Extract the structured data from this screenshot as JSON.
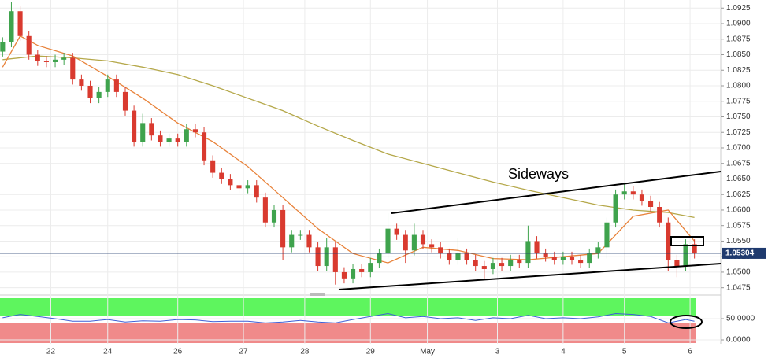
{
  "chart_data": [
    {
      "type": "candlestick",
      "annotation": "Sideways",
      "last_price": 1.05304,
      "up_color": "#3fa34d",
      "down_color": "#d93a2f",
      "grid": true,
      "xlim": [
        -0.3,
        82
      ],
      "ylim": [
        1.0467,
        1.0938
      ],
      "xticks": [
        {
          "value": 5.5,
          "label": "22"
        },
        {
          "value": 12,
          "label": "24"
        },
        {
          "value": 20,
          "label": "26"
        },
        {
          "value": 27.5,
          "label": "27"
        },
        {
          "value": 34.5,
          "label": "28"
        },
        {
          "value": 42,
          "label": "29"
        },
        {
          "value": 48.5,
          "label": "May"
        },
        {
          "value": 56.5,
          "label": "3"
        },
        {
          "value": 64,
          "label": "4"
        },
        {
          "value": 71,
          "label": "5"
        },
        {
          "value": 78.5,
          "label": "6"
        }
      ],
      "yticks": [
        1.0475,
        {
          "value": 1.05,
          "label": "1.0500"
        },
        1.0525,
        {
          "value": 1.055,
          "label": "1.0550"
        },
        1.0575,
        {
          "value": 1.06,
          "label": "1.0600"
        },
        1.0625,
        {
          "value": 1.065,
          "label": "1.0650"
        },
        1.0675,
        {
          "value": 1.07,
          "label": "1.0700"
        },
        1.0725,
        {
          "value": 1.075,
          "label": "1.0750"
        },
        1.0775,
        {
          "value": 1.08,
          "label": "1.0800"
        },
        1.0825,
        {
          "value": 1.085,
          "label": "1.0850"
        },
        1.0875,
        {
          "value": 1.09,
          "label": "1.0900"
        },
        1.0925
      ],
      "x": [
        0,
        1,
        2,
        3,
        4,
        5,
        6,
        7,
        8,
        9,
        10,
        11,
        12,
        13,
        14,
        15,
        16,
        17,
        18,
        19,
        20,
        21,
        22,
        23,
        24,
        25,
        26,
        27,
        28,
        29,
        30,
        31,
        32,
        33,
        34,
        35,
        36,
        37,
        38,
        39,
        40,
        41,
        42,
        43,
        44,
        45,
        46,
        47,
        48,
        49,
        50,
        51,
        52,
        53,
        54,
        55,
        56,
        57,
        58,
        59,
        60,
        61,
        62,
        63,
        64,
        65,
        66,
        67,
        68,
        69,
        70,
        71,
        72,
        73,
        74,
        75,
        76,
        77,
        78,
        79
      ],
      "open": [
        1.0855,
        1.087,
        1.092,
        1.088,
        1.085,
        1.084,
        1.0838,
        1.0842,
        1.0845,
        1.081,
        1.08,
        1.078,
        1.079,
        1.081,
        1.079,
        1.076,
        1.071,
        1.074,
        1.072,
        1.071,
        1.0715,
        1.071,
        1.073,
        1.0725,
        1.068,
        1.066,
        1.065,
        1.064,
        1.0635,
        1.064,
        1.062,
        1.058,
        1.06,
        1.054,
        1.056,
        1.056,
        1.054,
        1.051,
        1.054,
        1.05,
        1.049,
        1.0505,
        1.05,
        1.0515,
        1.053,
        1.057,
        1.056,
        1.0535,
        1.056,
        1.0545,
        1.054,
        1.053,
        1.052,
        1.053,
        1.052,
        1.051,
        1.0505,
        1.0515,
        1.051,
        1.052,
        1.0515,
        1.055,
        1.053,
        1.0525,
        1.052,
        1.0525,
        1.052,
        1.0515,
        1.053,
        1.054,
        1.058,
        1.0625,
        1.063,
        1.0625,
        1.0615,
        1.0605,
        1.058,
        1.052,
        1.051,
        1.0545
      ],
      "high": [
        1.0878,
        1.0935,
        1.0928,
        1.0888,
        1.0858,
        1.0848,
        1.085,
        1.0853,
        1.0853,
        1.0818,
        1.0808,
        1.0798,
        1.0818,
        1.0818,
        1.0798,
        1.0768,
        1.0755,
        1.0748,
        1.0728,
        1.0723,
        1.0723,
        1.0738,
        1.0738,
        1.0733,
        1.0688,
        1.0668,
        1.0658,
        1.0648,
        1.0648,
        1.0648,
        1.0628,
        1.0608,
        1.0608,
        1.0568,
        1.0568,
        1.0568,
        1.0548,
        1.0555,
        1.0548,
        1.0508,
        1.0513,
        1.0513,
        1.0523,
        1.0538,
        1.0595,
        1.0578,
        1.0568,
        1.0578,
        1.0568,
        1.0553,
        1.0548,
        1.0538,
        1.0555,
        1.0538,
        1.0528,
        1.0518,
        1.0523,
        1.0523,
        1.0528,
        1.0528,
        1.0575,
        1.0558,
        1.0538,
        1.0533,
        1.0533,
        1.0533,
        1.0528,
        1.0538,
        1.0548,
        1.0588,
        1.0633,
        1.0642,
        1.0638,
        1.0633,
        1.0623,
        1.0613,
        1.0588,
        1.0528,
        1.0553,
        1.0553
      ],
      "low": [
        1.0847,
        1.0862,
        1.0872,
        1.0842,
        1.0832,
        1.083,
        1.083,
        1.0834,
        1.0802,
        1.0792,
        1.0772,
        1.0772,
        1.0782,
        1.0782,
        1.0752,
        1.0702,
        1.0702,
        1.0712,
        1.0702,
        1.0702,
        1.0702,
        1.0702,
        1.0717,
        1.0672,
        1.0652,
        1.0642,
        1.0632,
        1.0627,
        1.0627,
        1.0612,
        1.0572,
        1.0572,
        1.052,
        1.0532,
        1.0552,
        1.0532,
        1.0502,
        1.0502,
        1.048,
        1.0482,
        1.0482,
        1.0492,
        1.0492,
        1.0507,
        1.0522,
        1.0552,
        1.0515,
        1.0527,
        1.0537,
        1.0532,
        1.0522,
        1.0512,
        1.0512,
        1.0512,
        1.0502,
        1.049,
        1.0497,
        1.0502,
        1.0502,
        1.0507,
        1.0507,
        1.0522,
        1.0517,
        1.0512,
        1.0512,
        1.0512,
        1.0507,
        1.0507,
        1.0522,
        1.0522,
        1.0572,
        1.0617,
        1.0617,
        1.0607,
        1.0597,
        1.0572,
        1.0502,
        1.0492,
        1.0502,
        1.0522
      ],
      "close": [
        1.087,
        1.092,
        1.088,
        1.085,
        1.084,
        1.0838,
        1.0842,
        1.0845,
        1.081,
        1.08,
        1.078,
        1.079,
        1.081,
        1.079,
        1.076,
        1.071,
        1.074,
        1.072,
        1.071,
        1.0715,
        1.071,
        1.073,
        1.0725,
        1.068,
        1.066,
        1.065,
        1.064,
        1.0635,
        1.064,
        1.062,
        1.058,
        1.06,
        1.054,
        1.056,
        1.056,
        1.054,
        1.051,
        1.054,
        1.05,
        1.049,
        1.0505,
        1.05,
        1.0515,
        1.053,
        1.057,
        1.056,
        1.0535,
        1.056,
        1.0545,
        1.054,
        1.053,
        1.052,
        1.053,
        1.052,
        1.051,
        1.0505,
        1.0515,
        1.051,
        1.052,
        1.0515,
        1.055,
        1.053,
        1.0525,
        1.052,
        1.0525,
        1.052,
        1.0515,
        1.053,
        1.054,
        1.058,
        1.0625,
        1.063,
        1.0625,
        1.0615,
        1.0605,
        1.058,
        1.052,
        1.051,
        1.0545,
        1.053
      ],
      "overlays": [
        {
          "color": "#b5a84a",
          "x": [
            0,
            4,
            8,
            12,
            16,
            20,
            24,
            28,
            32,
            36,
            40,
            44,
            48,
            52,
            56,
            60,
            64,
            68,
            72,
            76,
            79
          ],
          "values": [
            1.0842,
            1.0848,
            1.0845,
            1.084,
            1.083,
            1.0818,
            1.08,
            1.078,
            1.076,
            1.0735,
            1.0712,
            1.069,
            1.0675,
            1.066,
            1.0645,
            1.0632,
            1.062,
            1.0608,
            1.06,
            1.0596,
            1.0588
          ]
        },
        {
          "color": "#e8823a",
          "x": [
            0,
            2,
            4,
            8,
            12,
            16,
            20,
            24,
            28,
            32,
            36,
            40,
            44,
            48,
            52,
            56,
            60,
            64,
            68,
            72,
            76,
            79
          ],
          "values": [
            1.083,
            1.088,
            1.0865,
            1.0848,
            1.0815,
            1.078,
            1.074,
            1.071,
            1.067,
            1.062,
            1.057,
            1.053,
            1.0515,
            1.054,
            1.0535,
            1.0522,
            1.052,
            1.0525,
            1.053,
            1.059,
            1.06,
            1.055
          ]
        }
      ]
    },
    {
      "type": "line",
      "color": "#3d5fd6",
      "xlim": [
        -0.3,
        82
      ],
      "ylim": [
        0,
        100
      ],
      "yticks": [
        {
          "value": 50,
          "label": "50.0000"
        },
        {
          "value": 0,
          "label": "0.0000"
        }
      ],
      "x": [
        0,
        2,
        4,
        6,
        8,
        10,
        12,
        14,
        16,
        18,
        20,
        22,
        24,
        26,
        28,
        30,
        32,
        34,
        36,
        38,
        40,
        42,
        44,
        46,
        48,
        50,
        52,
        54,
        56,
        58,
        60,
        62,
        64,
        66,
        68,
        70,
        72,
        74,
        76,
        78,
        79
      ],
      "values": [
        52,
        60,
        55,
        50,
        44,
        44,
        48,
        42,
        45,
        44,
        48,
        47,
        43,
        44,
        44,
        40,
        42,
        46,
        42,
        40,
        48,
        55,
        62,
        52,
        55,
        50,
        52,
        46,
        52,
        50,
        58,
        50,
        52,
        50,
        54,
        62,
        60,
        55,
        40,
        48,
        44
      ]
    }
  ]
}
